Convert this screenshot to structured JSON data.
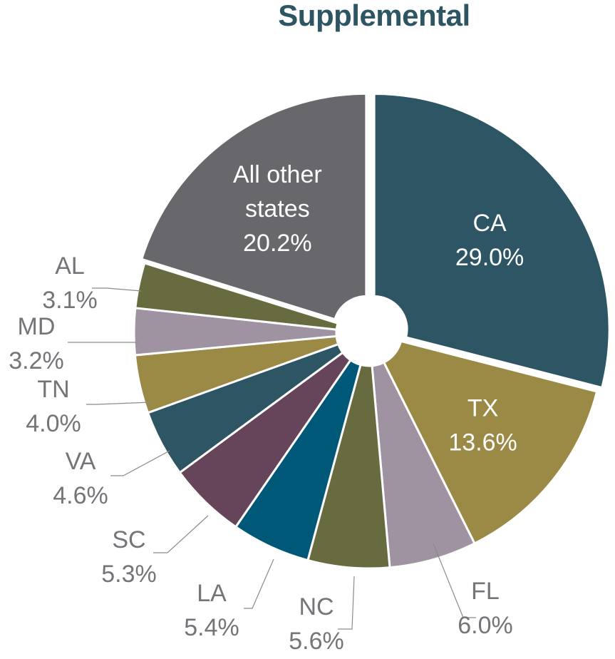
{
  "chart_data": {
    "type": "pie",
    "variant": "donut, first slice exploded",
    "title": "Supplemental",
    "unit": "%",
    "categories": [
      "CA",
      "TX",
      "FL",
      "NC",
      "LA",
      "SC",
      "VA",
      "TN",
      "MD",
      "AL",
      "All other states"
    ],
    "values": [
      29.0,
      13.6,
      6.0,
      5.6,
      5.4,
      5.3,
      4.6,
      4.0,
      3.2,
      3.1,
      20.2
    ],
    "value_labels": [
      "29.0%",
      "13.6%",
      "6.0%",
      "5.6%",
      "5.4%",
      "5.3%",
      "4.6%",
      "4.0%",
      "3.2%",
      "3.1%",
      "20.2%"
    ],
    "colors": [
      "#2e5563",
      "#9b8a45",
      "#a093a1",
      "#676b3f",
      "#005878",
      "#66455a",
      "#2e5563",
      "#9b8a45",
      "#a093a1",
      "#676b3f",
      "#68686c"
    ],
    "label_colors": [
      "#ffffff",
      "#ffffff",
      "#757579",
      "#757579",
      "#757579",
      "#757579",
      "#757579",
      "#757579",
      "#757579",
      "#757579",
      "#ffffff"
    ],
    "inside_label_lines": [
      [
        "CA"
      ],
      [
        "TX"
      ],
      [],
      [],
      [],
      [],
      [],
      [],
      [],
      [],
      [
        "All other",
        "states"
      ]
    ],
    "exploded": [
      "CA",
      "All other states"
    ],
    "start_position": "12 o'clock, clockwise",
    "legend": "none (direct labels)"
  },
  "colors": {
    "title": "#2e5563",
    "outside_label": "#757579",
    "leader_line": "#8a8a8a"
  }
}
